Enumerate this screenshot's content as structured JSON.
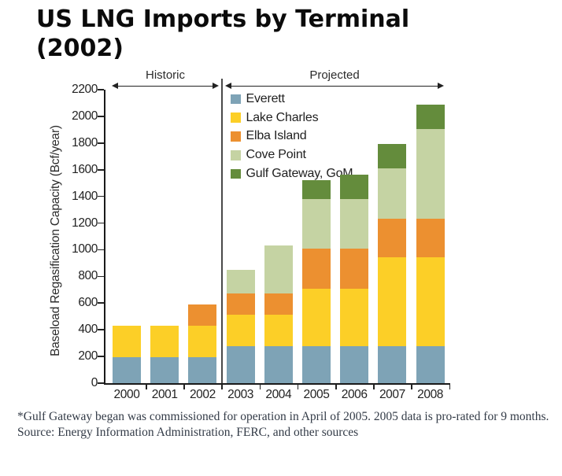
{
  "title": "US LNG Imports by Terminal (2002)",
  "chart_data": {
    "type": "bar",
    "stacked": true,
    "title": "US LNG Imports by Terminal (2002)",
    "xlabel": "",
    "ylabel": "Baseload Regasification Capacity (Bcf/year)",
    "ylim": [
      0,
      2200
    ],
    "ytick_step": 200,
    "grid": false,
    "legend_position": "upper-left-inside",
    "categories": [
      "2000",
      "2001",
      "2002",
      "2003",
      "2004",
      "2005",
      "2006",
      "2007",
      "2008"
    ],
    "series": [
      {
        "name": "Everett",
        "color": "#7ea3b6",
        "values": [
          195,
          195,
          195,
          275,
          275,
          275,
          275,
          275,
          275
        ]
      },
      {
        "name": "Lake Charles",
        "color": "#fccf27",
        "values": [
          235,
          235,
          235,
          240,
          240,
          435,
          435,
          670,
          670
        ]
      },
      {
        "name": "Elba Island",
        "color": "#ec9030",
        "values": [
          0,
          0,
          160,
          155,
          155,
          300,
          300,
          290,
          290
        ]
      },
      {
        "name": "Cove Point",
        "color": "#c5d3a3",
        "values": [
          0,
          0,
          0,
          180,
          360,
          370,
          370,
          375,
          670
        ]
      },
      {
        "name": "Gulf Gateway, GoM",
        "color": "#648c3c",
        "values": [
          0,
          0,
          0,
          0,
          0,
          140,
          185,
          185,
          185
        ]
      }
    ],
    "totals": [
      430,
      430,
      590,
      850,
      1030,
      1520,
      1565,
      1795,
      2090
    ],
    "period_labels": {
      "historic": "Historic",
      "projected": "Projected"
    },
    "period_ranges": {
      "historic": [
        "2000",
        "2002"
      ],
      "projected": [
        "2003",
        "2008"
      ]
    }
  },
  "footnote": "*Gulf Gateway began was commissioned for operation in April of 2005. 2005 data is pro-rated for 9 months.",
  "source": "Source:  Energy Information Administration, FERC, and other sources"
}
